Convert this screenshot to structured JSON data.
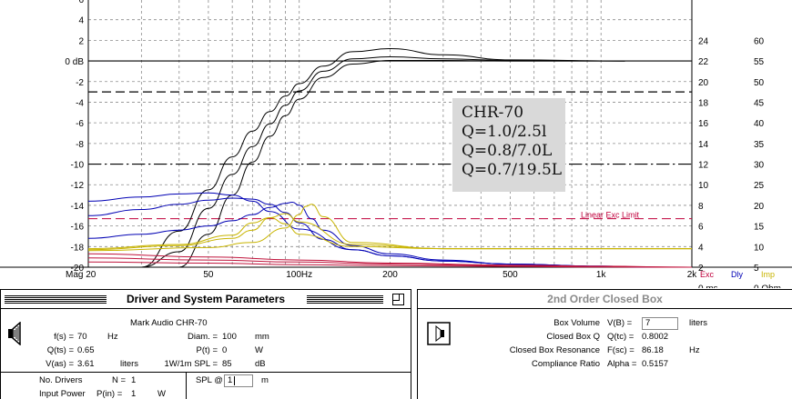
{
  "plot": {
    "left_axis_labels": [
      "6",
      "4",
      "2",
      "0 dB",
      "-2",
      "-4",
      "-6",
      "-8",
      "-10",
      "-12",
      "-14",
      "-16",
      "-18",
      "-20"
    ],
    "right_axis_a_labels": [
      "24",
      "22",
      "20",
      "18",
      "16",
      "14",
      "12",
      "10",
      "8",
      "6",
      "4",
      "2",
      "0 ms"
    ],
    "right_axis_b_labels": [
      "60",
      "55",
      "50",
      "45",
      "40",
      "35",
      "30",
      "25",
      "20",
      "15",
      "10",
      "5",
      "0 Ohm"
    ],
    "x_labels": [
      "Mag 20",
      "50",
      "100Hz",
      "200",
      "500",
      "1k",
      "2k"
    ],
    "x_legend": {
      "exc": "Exc",
      "dly": "Dly",
      "imp": "Imp"
    },
    "linear_limit_label": "Linear Exc Limit",
    "annotation": [
      "CHR-70",
      "Q=1.0/2.5l",
      "Q=0.8/7.0L",
      "Q=0.7/19.5L"
    ],
    "colors": {
      "response": "#000000",
      "excursion": "#0000b4",
      "delay": "#c0143c",
      "impedance": "#c8b400",
      "limit": "#c0003c"
    }
  },
  "chart_data": {
    "type": "line",
    "xscale": "log",
    "xlim": [
      20,
      2000
    ],
    "ylim": [
      -20,
      6
    ],
    "ylabel": "dB",
    "series_groups": [
      {
        "kind": "response",
        "series": [
          {
            "x": [
              20,
              30,
              40,
              50,
              60,
              70,
              80,
              90,
              100,
              120,
              150,
              200,
              300,
              500,
              1200
            ],
            "y": [
              -28,
              -21.5,
              -16.5,
              -12.5,
              -9.3,
              -6.8,
              -4.9,
              -3.4,
              -2.2,
              -0.5,
              0.9,
              1.2,
              0.6,
              0.1,
              0
            ]
          },
          {
            "x": [
              20,
              30,
              40,
              50,
              60,
              70,
              80,
              90,
              100,
              120,
              150,
              200,
              300,
              500,
              1200
            ],
            "y": [
              -30,
              -23.5,
              -18.5,
              -14.3,
              -11,
              -8.3,
              -6.1,
              -4.3,
              -2.9,
              -1,
              0.2,
              0.4,
              0.2,
              0.05,
              0
            ]
          },
          {
            "x": [
              20,
              30,
              40,
              50,
              60,
              70,
              80,
              90,
              100,
              120,
              150,
              200,
              300,
              500,
              1200
            ],
            "y": [
              -34,
              -27,
              -21.5,
              -16.8,
              -13,
              -9.8,
              -7.3,
              -5.3,
              -3.7,
              -1.6,
              -0.3,
              0.05,
              0.05,
              0,
              0
            ]
          }
        ]
      },
      {
        "kind": "excursion",
        "series": [
          {
            "x": [
              20,
              30,
              40,
              50,
              60,
              70,
              80,
              100,
              150,
              200,
              300,
              500,
              1000,
              1500
            ],
            "y": [
              -13.6,
              -13.2,
              -12.9,
              -12.8,
              -13,
              -13.6,
              -14.6,
              -16.3,
              -18.3,
              -18.9,
              -19.4,
              -19.7,
              -19.9,
              -20
            ]
          },
          {
            "x": [
              20,
              30,
              40,
              50,
              60,
              70,
              80,
              90,
              100,
              120,
              150,
              200,
              300,
              500,
              1000,
              1500
            ],
            "y": [
              -15,
              -14.4,
              -13.9,
              -13.5,
              -13.3,
              -13.4,
              -13.9,
              -14.7,
              -15.7,
              -17.3,
              -18.3,
              -18.9,
              -19.4,
              -19.7,
              -19.9,
              -20
            ]
          },
          {
            "x": [
              20,
              30,
              40,
              50,
              60,
              70,
              80,
              90,
              95,
              100,
              110,
              120,
              150,
              200,
              300,
              500,
              1000,
              1500
            ],
            "y": [
              -17.2,
              -16.8,
              -16.4,
              -16,
              -15.5,
              -14.9,
              -14.2,
              -13.8,
              -13.7,
              -14,
              -15.3,
              -16.4,
              -17.9,
              -18.7,
              -19.3,
              -19.7,
              -19.9,
              -20
            ]
          }
        ]
      },
      {
        "kind": "impedance",
        "series": [
          {
            "x": [
              20,
              40,
              60,
              70,
              80,
              90,
              100,
              150,
              300,
              1000,
              2000
            ],
            "y": [
              -18.2,
              -17.8,
              -16.9,
              -15.7,
              -15.2,
              -15.8,
              -16.8,
              -18,
              -18.2,
              -18.2,
              -18.2
            ]
          },
          {
            "x": [
              20,
              40,
              60,
              70,
              80,
              90,
              100,
              150,
              300,
              1000,
              2000
            ],
            "y": [
              -18.3,
              -17.9,
              -17.2,
              -16.4,
              -15.2,
              -14.8,
              -15.6,
              -17.8,
              -18.2,
              -18.2,
              -18.2
            ]
          },
          {
            "x": [
              20,
              50,
              70,
              90,
              100,
              105,
              110,
              120,
              150,
              300,
              1000,
              2000
            ],
            "y": [
              -18.4,
              -18.1,
              -17.6,
              -16.2,
              -14.9,
              -14.1,
              -13.9,
              -15.1,
              -17.6,
              -18.2,
              -18.2,
              -18.2
            ]
          }
        ]
      },
      {
        "kind": "delay",
        "series": [
          {
            "x": [
              20,
              50,
              100,
              200,
              500,
              1000,
              2000
            ],
            "y": [
              -18.7,
              -19,
              -19.3,
              -19.6,
              -19.8,
              -19.9,
              -20
            ]
          },
          {
            "x": [
              20,
              50,
              100,
              200,
              500,
              1000,
              2000
            ],
            "y": [
              -19.1,
              -19.3,
              -19.5,
              -19.7,
              -19.85,
              -19.95,
              -20
            ]
          },
          {
            "x": [
              20,
              50,
              100,
              200,
              500,
              1000,
              2000
            ],
            "y": [
              -19.5,
              -19.6,
              -19.75,
              -19.85,
              -19.92,
              -19.98,
              -20
            ]
          }
        ]
      }
    ],
    "reference_lines": [
      {
        "y": 0,
        "style": "solid"
      },
      {
        "y": -3,
        "style": "dashed"
      },
      {
        "y": -10,
        "style": "dash-dot"
      },
      {
        "y": -15.3,
        "style": "dashed",
        "label": "Linear Exc Limit"
      }
    ]
  },
  "driver_panel": {
    "title": "Driver and System Parameters",
    "driver_name": "Mark Audio CHR-70",
    "fs_label": "f(s) =",
    "fs_value": "70",
    "fs_unit": "Hz",
    "qts_label": "Q(ts) =",
    "qts_value": "0.65",
    "vas_label": "V(as) =",
    "vas_value": "3.61",
    "vas_unit": "liters",
    "diam_label": "Diam. =",
    "diam_value": "100",
    "diam_unit": "mm",
    "pt_label": "P(t) =",
    "pt_value": "0",
    "pt_unit": "W",
    "spl_label": "1W/1m SPL =",
    "spl_value": "85",
    "spl_unit": "dB",
    "nodrivers_label": "No. Drivers",
    "n_label": "N =",
    "n_value": "1",
    "spl_at_label": "SPL @",
    "spl_at_value": "1",
    "spl_at_unit": "m",
    "input_power_label": "Input Power",
    "pin_label": "P(in) =",
    "pin_value": "1",
    "pin_unit": "W"
  },
  "box_panel": {
    "title": "2nd Order Closed Box",
    "rows": [
      {
        "label": "Box Volume",
        "param": "V(B) =",
        "value": "7",
        "unit": "liters"
      },
      {
        "label": "Closed Box Q",
        "param": "Q(tc) =",
        "value": "0.8002",
        "unit": ""
      },
      {
        "label": "Closed Box Resonance",
        "param": "F(sc) =",
        "value": "86.18",
        "unit": "Hz"
      },
      {
        "label": "Compliance Ratio",
        "param": "Alpha =",
        "value": "0.5157",
        "unit": ""
      }
    ]
  }
}
